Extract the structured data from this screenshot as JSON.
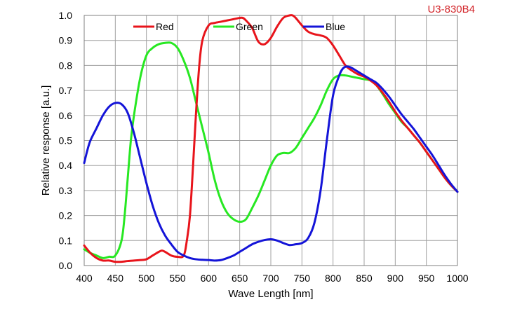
{
  "model_label": "U3-830B4",
  "chart_data": {
    "type": "line",
    "xlabel": "Wave Length [nm]",
    "ylabel": "Relative response [a.u.]",
    "xlim": [
      400,
      1000
    ],
    "ylim": [
      0,
      1.0
    ],
    "grid": true,
    "legend_position": "top-left",
    "x_ticks": [
      "400",
      "450",
      "500",
      "550",
      "600",
      "650",
      "700",
      "750",
      "800",
      "850",
      "900",
      "950",
      "1000"
    ],
    "y_ticks": [
      "0.0",
      "0.1",
      "0.2",
      "0.3",
      "0.4",
      "0.5",
      "0.6",
      "0.7",
      "0.8",
      "0.9",
      "1.0"
    ],
    "series": [
      {
        "name": "Red",
        "color": "#e8141b",
        "x": [
          400,
          410,
          420,
          430,
          440,
          450,
          460,
          470,
          480,
          490,
          500,
          510,
          520,
          525,
          530,
          540,
          550,
          560,
          565,
          570,
          575,
          580,
          585,
          590,
          600,
          610,
          620,
          630,
          640,
          650,
          655,
          660,
          670,
          680,
          690,
          700,
          710,
          720,
          730,
          735,
          740,
          750,
          760,
          770,
          780,
          790,
          800,
          810,
          820,
          830,
          840,
          850,
          860,
          870,
          880,
          890,
          900,
          910,
          920,
          930,
          940,
          950,
          960,
          970,
          980,
          990,
          1000
        ],
        "y": [
          0.08,
          0.05,
          0.03,
          0.02,
          0.02,
          0.015,
          0.015,
          0.018,
          0.02,
          0.022,
          0.025,
          0.04,
          0.055,
          0.06,
          0.055,
          0.04,
          0.035,
          0.04,
          0.1,
          0.2,
          0.4,
          0.62,
          0.8,
          0.9,
          0.96,
          0.97,
          0.975,
          0.98,
          0.985,
          0.99,
          0.99,
          0.98,
          0.95,
          0.895,
          0.885,
          0.91,
          0.955,
          0.99,
          1.0,
          1.0,
          0.99,
          0.96,
          0.935,
          0.925,
          0.92,
          0.91,
          0.88,
          0.84,
          0.8,
          0.78,
          0.765,
          0.755,
          0.74,
          0.72,
          0.69,
          0.655,
          0.615,
          0.58,
          0.55,
          0.52,
          0.49,
          0.455,
          0.42,
          0.385,
          0.35,
          0.32,
          0.295
        ]
      },
      {
        "name": "Green",
        "color": "#27e822",
        "x": [
          400,
          410,
          420,
          430,
          440,
          450,
          460,
          465,
          470,
          475,
          480,
          490,
          500,
          510,
          520,
          530,
          540,
          550,
          560,
          570,
          580,
          590,
          600,
          610,
          620,
          630,
          640,
          650,
          660,
          670,
          680,
          690,
          700,
          710,
          720,
          730,
          740,
          750,
          760,
          770,
          780,
          790,
          800,
          810,
          820,
          830,
          840,
          850,
          860,
          870,
          880,
          890,
          900,
          910,
          920,
          930,
          940,
          950,
          960,
          970,
          980,
          990,
          1000
        ],
        "y": [
          0.065,
          0.05,
          0.04,
          0.03,
          0.035,
          0.04,
          0.1,
          0.2,
          0.35,
          0.5,
          0.6,
          0.75,
          0.84,
          0.87,
          0.885,
          0.89,
          0.89,
          0.87,
          0.82,
          0.75,
          0.65,
          0.55,
          0.45,
          0.34,
          0.26,
          0.21,
          0.185,
          0.175,
          0.185,
          0.23,
          0.28,
          0.34,
          0.4,
          0.44,
          0.45,
          0.45,
          0.47,
          0.51,
          0.55,
          0.59,
          0.64,
          0.7,
          0.745,
          0.76,
          0.76,
          0.755,
          0.75,
          0.745,
          0.74,
          0.72,
          0.685,
          0.645,
          0.61,
          0.575,
          0.55,
          0.52,
          0.49,
          0.455,
          0.42,
          0.385,
          0.35,
          0.32,
          0.295
        ]
      },
      {
        "name": "Blue",
        "color": "#1414d8",
        "x": [
          400,
          405,
          410,
          420,
          430,
          440,
          450,
          460,
          470,
          480,
          490,
          500,
          510,
          520,
          530,
          540,
          550,
          560,
          570,
          580,
          590,
          600,
          610,
          620,
          630,
          640,
          650,
          660,
          670,
          680,
          690,
          700,
          710,
          720,
          730,
          740,
          750,
          760,
          770,
          780,
          790,
          800,
          810,
          815,
          820,
          825,
          830,
          840,
          850,
          860,
          870,
          880,
          890,
          900,
          910,
          920,
          930,
          940,
          950,
          960,
          970,
          980,
          990,
          1000
        ],
        "y": [
          0.41,
          0.46,
          0.5,
          0.55,
          0.6,
          0.635,
          0.65,
          0.645,
          0.61,
          0.53,
          0.43,
          0.33,
          0.24,
          0.17,
          0.12,
          0.085,
          0.055,
          0.04,
          0.03,
          0.025,
          0.023,
          0.022,
          0.02,
          0.022,
          0.03,
          0.04,
          0.055,
          0.07,
          0.085,
          0.095,
          0.102,
          0.105,
          0.1,
          0.09,
          0.082,
          0.085,
          0.09,
          0.11,
          0.17,
          0.3,
          0.5,
          0.68,
          0.76,
          0.785,
          0.795,
          0.795,
          0.79,
          0.775,
          0.76,
          0.745,
          0.73,
          0.705,
          0.675,
          0.64,
          0.605,
          0.575,
          0.545,
          0.51,
          0.475,
          0.44,
          0.4,
          0.36,
          0.325,
          0.295
        ]
      }
    ]
  }
}
